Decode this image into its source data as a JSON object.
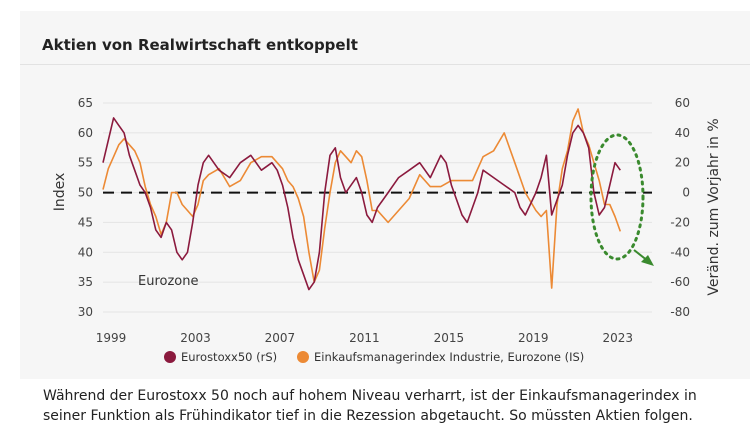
{
  "page": {
    "title": "Aktien von Realwirtschaft entkoppelt",
    "caption": "Während der Eurostoxx 50 noch auf hohem Niveau verharrt, ist der Einkaufsmanagerindex in seiner Funktion als Frühindikator tief in die Rezession abgetaucht. So müssten Aktien folgen."
  },
  "chart_data": {
    "type": "line",
    "title": "Aktien von Realwirtschaft entkoppelt",
    "ylabel_left": "Index",
    "ylabel_right": "Veränd. zum Vorjahr in %",
    "annotation": "Eurozone",
    "x_ticks": [
      "1999",
      "2003",
      "2007",
      "2011",
      "2015",
      "2019",
      "2023"
    ],
    "xlim": [
      1999,
      2025
    ],
    "ylim_left": [
      30,
      65
    ],
    "yticks_left": [
      "65",
      "60",
      "55",
      "50",
      "45",
      "40",
      "35",
      "30"
    ],
    "ylim_right": [
      -80,
      60
    ],
    "yticks_right": [
      "60",
      "40",
      "20",
      "0",
      "-20",
      "-40",
      "-60",
      "-80"
    ],
    "reference_line": {
      "axis": "right",
      "value": 0,
      "style": "dashed"
    },
    "legend_position": "bottom",
    "colors": {
      "eurostoxx": "#8b1a3e",
      "pmi": "#ec8a35",
      "highlight": "#3a8a2e",
      "reference": "#111111"
    },
    "series": [
      {
        "name": "Eurostoxx50 (rS)",
        "axis": "right",
        "x": [
          1999.0,
          1999.25,
          1999.5,
          1999.75,
          2000.0,
          2000.25,
          2000.5,
          2000.75,
          2001.0,
          2001.25,
          2001.5,
          2001.75,
          2002.0,
          2002.25,
          2002.5,
          2002.75,
          2003.0,
          2003.25,
          2003.5,
          2003.75,
          2004.0,
          2004.5,
          2005.0,
          2005.5,
          2006.0,
          2006.5,
          2007.0,
          2007.25,
          2007.5,
          2007.75,
          2008.0,
          2008.25,
          2008.5,
          2008.75,
          2009.0,
          2009.25,
          2009.5,
          2009.75,
          2010.0,
          2010.25,
          2010.5,
          2010.75,
          2011.0,
          2011.25,
          2011.5,
          2011.75,
          2012.0,
          2012.5,
          2013.0,
          2013.5,
          2014.0,
          2014.5,
          2015.0,
          2015.25,
          2015.5,
          2015.75,
          2016.0,
          2016.25,
          2016.5,
          2016.75,
          2017.0,
          2017.5,
          2018.0,
          2018.5,
          2018.75,
          2019.0,
          2019.5,
          2019.75,
          2020.0,
          2020.25,
          2020.5,
          2020.75,
          2021.0,
          2021.25,
          2021.5,
          2021.75,
          2022.0,
          2022.25,
          2022.5,
          2022.75,
          2023.0,
          2023.25,
          2023.5
        ],
        "values": [
          20,
          35,
          50,
          45,
          40,
          25,
          15,
          5,
          0,
          -10,
          -25,
          -30,
          -20,
          -25,
          -40,
          -45,
          -40,
          -20,
          5,
          20,
          25,
          15,
          10,
          20,
          25,
          15,
          20,
          15,
          5,
          -10,
          -30,
          -45,
          -55,
          -65,
          -60,
          -40,
          0,
          25,
          30,
          10,
          0,
          5,
          10,
          0,
          -15,
          -20,
          -10,
          0,
          10,
          15,
          20,
          10,
          25,
          20,
          5,
          -5,
          -15,
          -20,
          -10,
          0,
          15,
          10,
          5,
          0,
          -10,
          -15,
          0,
          10,
          25,
          -15,
          -5,
          5,
          25,
          40,
          45,
          40,
          30,
          0,
          -15,
          -10,
          5,
          20,
          15
        ]
      },
      {
        "name": "Einkaufsmanagerindex Industrie, Eurozone (IS)",
        "axis": "left",
        "x": [
          1999.0,
          1999.25,
          1999.5,
          1999.75,
          2000.0,
          2000.25,
          2000.5,
          2000.75,
          2001.0,
          2001.25,
          2001.5,
          2001.75,
          2002.0,
          2002.25,
          2002.5,
          2002.75,
          2003.0,
          2003.25,
          2003.5,
          2003.75,
          2004.0,
          2004.5,
          2005.0,
          2005.5,
          2006.0,
          2006.5,
          2007.0,
          2007.25,
          2007.5,
          2007.75,
          2008.0,
          2008.25,
          2008.5,
          2008.75,
          2009.0,
          2009.25,
          2009.5,
          2009.75,
          2010.0,
          2010.25,
          2010.5,
          2010.75,
          2011.0,
          2011.25,
          2011.5,
          2011.75,
          2012.0,
          2012.5,
          2013.0,
          2013.5,
          2014.0,
          2014.5,
          2015.0,
          2015.5,
          2016.0,
          2016.5,
          2017.0,
          2017.5,
          2018.0,
          2018.5,
          2019.0,
          2019.5,
          2019.75,
          2020.0,
          2020.25,
          2020.5,
          2020.75,
          2021.0,
          2021.25,
          2021.5,
          2021.75,
          2022.0,
          2022.25,
          2022.5,
          2022.75,
          2023.0,
          2023.25,
          2023.5
        ],
        "values": [
          50.5,
          54,
          56,
          58,
          59,
          58,
          57,
          55,
          51,
          48,
          46,
          43,
          45,
          50,
          50,
          48,
          47,
          46,
          48,
          52,
          53,
          54,
          51,
          52,
          55,
          56,
          56,
          55,
          54,
          52,
          51,
          49,
          46,
          40,
          35,
          37,
          44,
          50,
          55,
          57,
          56,
          55,
          57,
          56,
          52,
          47,
          47,
          45,
          47,
          49,
          53,
          51,
          51,
          52,
          52,
          52,
          56,
          57,
          60,
          55,
          50,
          47,
          46,
          47,
          34,
          48,
          54,
          57,
          62,
          64,
          60,
          58,
          55,
          52,
          48,
          48,
          46,
          43.5
        ]
      }
    ]
  }
}
